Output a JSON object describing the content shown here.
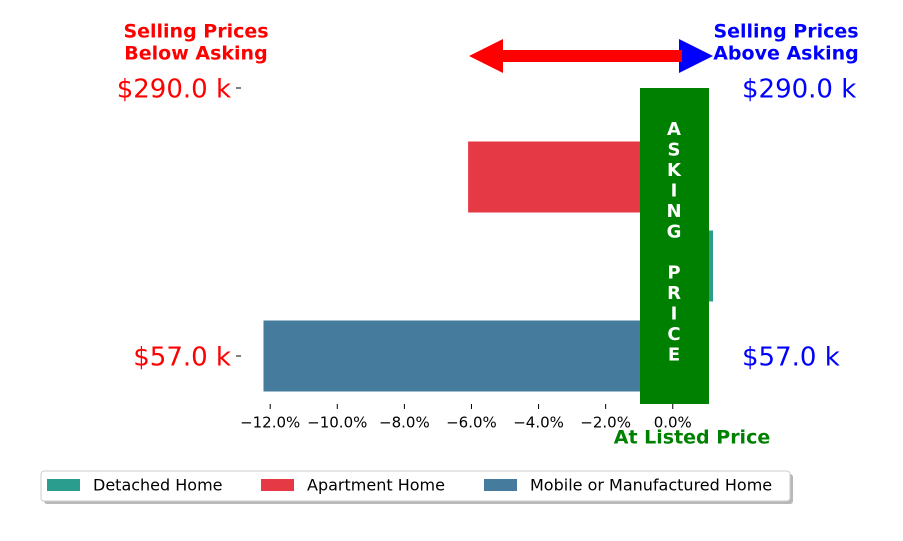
{
  "chart_data": {
    "type": "bar",
    "orientation": "horizontal",
    "series": [
      {
        "name": "Detached Home",
        "color": "#2a9d8f",
        "values": [
          1.2
        ]
      },
      {
        "name": "Apartment Home",
        "color": "#e63946",
        "values": [
          -6.1
        ]
      },
      {
        "name": "Mobile or Manufactured Home",
        "color": "#457b9d",
        "values": [
          -12.2
        ]
      }
    ],
    "xlim": [
      -12.9,
      1.2
    ],
    "xticks": [
      {
        "value": -12,
        "label": "−12.0%"
      },
      {
        "value": -10,
        "label": "−10.0%"
      },
      {
        "value": -8,
        "label": "−8.0%"
      },
      {
        "value": -6,
        "label": "−6.0%"
      },
      {
        "value": -4,
        "label": "−4.0%"
      },
      {
        "value": -2,
        "label": "−2.0%"
      },
      {
        "value": 0,
        "label": "0.0%"
      }
    ],
    "left_title": [
      "Selling Prices",
      "Below Asking"
    ],
    "right_title": [
      "Selling Prices",
      "Above Asking"
    ],
    "left_labels": [
      "$290.0 k",
      "$57.0 k"
    ],
    "right_labels": [
      "$290.0 k",
      "$57.0 k"
    ],
    "center_label": "ASKING PRICE",
    "bottom_label": "At Listed Price",
    "legend": "bottom"
  }
}
